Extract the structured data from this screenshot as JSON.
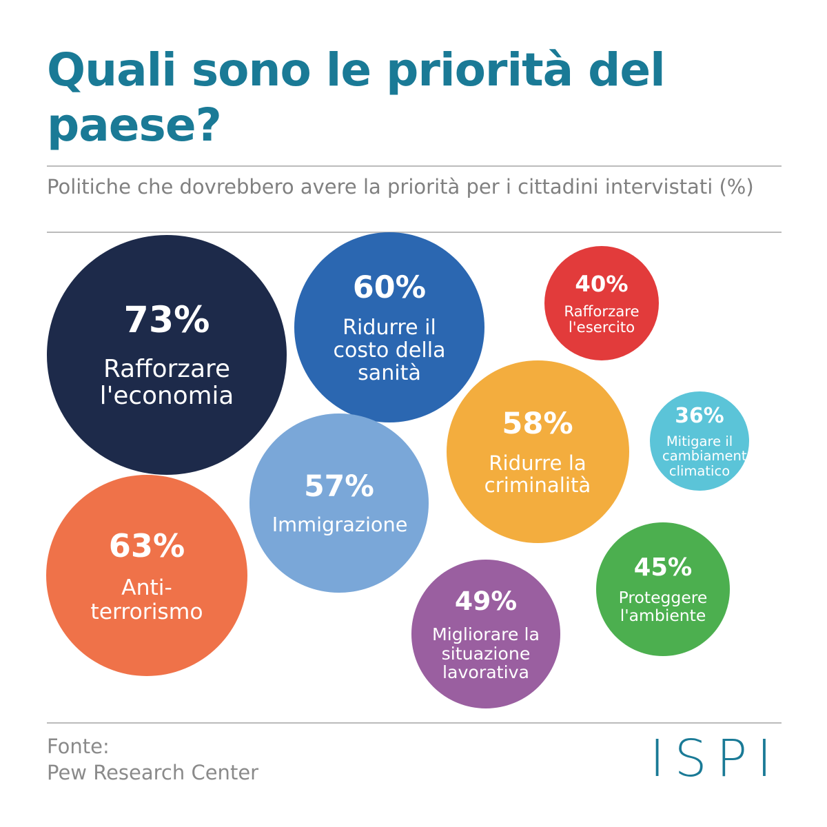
{
  "chart_data": {
    "type": "bubble",
    "title": "Quali sono le priorità del paese?",
    "subtitle": "Politiche che dovrebbero avere la priorità per i cittadini intervistati (%)",
    "categories": [
      "Rafforzare l'economia",
      "Ridurre il costo della sanità",
      "Rafforzare l'esercito",
      "Ridurre la criminalità",
      "Mitigare il cambiamento climatico",
      "Immigrazione",
      "Anti-terrorismo",
      "Migliorare la situazione lavorativa",
      "Proteggere l'ambiente"
    ],
    "values": [
      73,
      60,
      40,
      58,
      36,
      57,
      63,
      49,
      45
    ],
    "value_labels": [
      "73%",
      "60%",
      "40%",
      "58%",
      "36%",
      "57%",
      "63%",
      "49%",
      "45%"
    ],
    "colors": [
      "#1d2a4a",
      "#2b67b1",
      "#e23b3b",
      "#f3ad3e",
      "#5bc4d8",
      "#7aa7d8",
      "#ef7249",
      "#9a5fa0",
      "#4caf4f"
    ],
    "source_label": "Fonte:",
    "source": "Pew Research Center",
    "logo": "ISPI"
  }
}
